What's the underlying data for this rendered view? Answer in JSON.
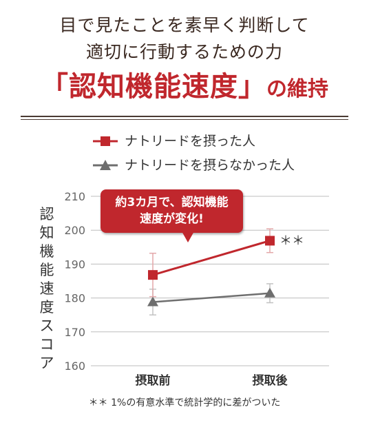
{
  "header": {
    "line1": "目で見たことを素早く判断して",
    "line2": "適切に行動するための力",
    "title_main": "「認知機能速度」",
    "title_suffix": "の維持"
  },
  "callout": {
    "line1": "約3カ月で、認知機能",
    "line2": "速度が変化!"
  },
  "footnote": "＊＊ 1%の有意水準で統計学的に差がついた",
  "colors": {
    "red": "#c0272d",
    "gray": "#6e6e6e",
    "title_brown": "#3a2820"
  },
  "chart_data": {
    "type": "line",
    "categories": [
      "摂取前",
      "摂取後"
    ],
    "ylabel": "認知機能速度スコア",
    "ylim": [
      160,
      210
    ],
    "yticks": [
      "210",
      "200",
      "190",
      "180",
      "170",
      "160"
    ],
    "grid": true,
    "legend_position": "top-left",
    "series": [
      {
        "name": "ナトリードを摂った人",
        "marker": "square",
        "color": "#c0272d",
        "values": [
          186.8,
          196.9
        ],
        "err_high": [
          193.2,
          200.4
        ],
        "err_low": [
          180.4,
          193.4
        ],
        "annotations": [
          "",
          "＊＊"
        ]
      },
      {
        "name": "ナトリードを摂らなかった人",
        "marker": "triangle",
        "color": "#6e6e6e",
        "values": [
          178.8,
          181.4
        ],
        "err_high": [
          182.6,
          184.2
        ],
        "err_low": [
          175.0,
          178.6
        ],
        "annotations": [
          "",
          ""
        ]
      }
    ]
  }
}
